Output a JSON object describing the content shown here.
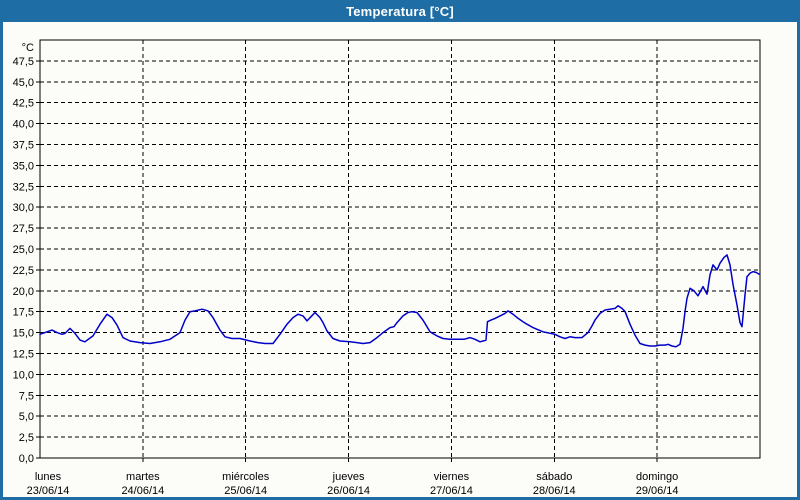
{
  "window": {
    "title": "Temperatura [°C]"
  },
  "colors": {
    "frame": "#1e6da5",
    "titlebar_bg": "#1e6da5",
    "title_text": "#ffffff",
    "content_bg": "#fcfcf9",
    "plot_border": "#000000",
    "grid": "#000000",
    "tick_text": "#000000",
    "line": "#0000c8"
  },
  "chart_data": {
    "type": "line",
    "title": "Temperatura [°C]",
    "ylabel": "°C",
    "ylim": [
      0,
      50
    ],
    "ytick_step": 2.5,
    "grid": "dashed",
    "legend_position": "none",
    "yticks": [
      {
        "value": 0.0,
        "label": "0,0"
      },
      {
        "value": 2.5,
        "label": "2,5"
      },
      {
        "value": 5.0,
        "label": "5,0"
      },
      {
        "value": 7.5,
        "label": "7,5"
      },
      {
        "value": 10.0,
        "label": "10,0"
      },
      {
        "value": 12.5,
        "label": "12,5"
      },
      {
        "value": 15.0,
        "label": "15,0"
      },
      {
        "value": 17.5,
        "label": "17,5"
      },
      {
        "value": 20.0,
        "label": "20,0"
      },
      {
        "value": 22.5,
        "label": "22,5"
      },
      {
        "value": 25.0,
        "label": "25,0"
      },
      {
        "value": 27.5,
        "label": "27,5"
      },
      {
        "value": 30.0,
        "label": "30,0"
      },
      {
        "value": 32.5,
        "label": "32,5"
      },
      {
        "value": 35.0,
        "label": "35,0"
      },
      {
        "value": 37.5,
        "label": "37,5"
      },
      {
        "value": 40.0,
        "label": "40,0"
      },
      {
        "value": 42.5,
        "label": "42,5"
      },
      {
        "value": 45.0,
        "label": "45,0"
      },
      {
        "value": 47.5,
        "label": "47,5"
      }
    ],
    "x_days": [
      {
        "name": "lunes",
        "date": "23/06/14"
      },
      {
        "name": "martes",
        "date": "24/06/14"
      },
      {
        "name": "miércoles",
        "date": "25/06/14"
      },
      {
        "name": "jueves",
        "date": "26/06/14"
      },
      {
        "name": "viernes",
        "date": "27/06/14"
      },
      {
        "name": "sábado",
        "date": "28/06/14"
      },
      {
        "name": "domingo",
        "date": "29/06/14"
      }
    ],
    "series": [
      {
        "name": "Temperatura",
        "color": "#0000c8",
        "points": [
          [
            0.0,
            14.8
          ],
          [
            0.049,
            15.0
          ],
          [
            0.117,
            15.3
          ],
          [
            0.165,
            15.0
          ],
          [
            0.214,
            14.8
          ],
          [
            0.243,
            14.9
          ],
          [
            0.292,
            15.5
          ],
          [
            0.34,
            14.9
          ],
          [
            0.389,
            14.1
          ],
          [
            0.437,
            13.9
          ],
          [
            0.515,
            14.6
          ],
          [
            0.583,
            16.0
          ],
          [
            0.651,
            17.2
          ],
          [
            0.7,
            16.8
          ],
          [
            0.749,
            15.9
          ],
          [
            0.807,
            14.4
          ],
          [
            0.875,
            14.0
          ],
          [
            0.972,
            13.8
          ],
          [
            1.069,
            13.7
          ],
          [
            1.167,
            13.9
          ],
          [
            1.264,
            14.2
          ],
          [
            1.361,
            15.0
          ],
          [
            1.41,
            16.5
          ],
          [
            1.458,
            17.5
          ],
          [
            1.507,
            17.6
          ],
          [
            1.575,
            17.8
          ],
          [
            1.633,
            17.6
          ],
          [
            1.682,
            16.8
          ],
          [
            1.75,
            15.3
          ],
          [
            1.799,
            14.5
          ],
          [
            1.867,
            14.3
          ],
          [
            1.944,
            14.3
          ],
          [
            2.042,
            14.0
          ],
          [
            2.119,
            13.8
          ],
          [
            2.188,
            13.7
          ],
          [
            2.265,
            13.7
          ],
          [
            2.333,
            14.8
          ],
          [
            2.401,
            16.0
          ],
          [
            2.46,
            16.8
          ],
          [
            2.508,
            17.2
          ],
          [
            2.557,
            17.0
          ],
          [
            2.596,
            16.4
          ],
          [
            2.635,
            16.9
          ],
          [
            2.674,
            17.4
          ],
          [
            2.722,
            16.8
          ],
          [
            2.751,
            16.2
          ],
          [
            2.79,
            15.2
          ],
          [
            2.849,
            14.3
          ],
          [
            2.917,
            14.0
          ],
          [
            3.014,
            13.9
          ],
          [
            3.082,
            13.8
          ],
          [
            3.14,
            13.7
          ],
          [
            3.208,
            13.8
          ],
          [
            3.276,
            14.4
          ],
          [
            3.335,
            15.0
          ],
          [
            3.403,
            15.6
          ],
          [
            3.442,
            15.7
          ],
          [
            3.471,
            16.2
          ],
          [
            3.529,
            17.0
          ],
          [
            3.578,
            17.4
          ],
          [
            3.617,
            17.5
          ],
          [
            3.665,
            17.4
          ],
          [
            3.724,
            16.5
          ],
          [
            3.792,
            15.1
          ],
          [
            3.86,
            14.6
          ],
          [
            3.918,
            14.3
          ],
          [
            3.986,
            14.2
          ],
          [
            4.064,
            14.2
          ],
          [
            4.122,
            14.2
          ],
          [
            4.181,
            14.4
          ],
          [
            4.229,
            14.2
          ],
          [
            4.278,
            13.9
          ],
          [
            4.307,
            14.0
          ],
          [
            4.336,
            14.1
          ],
          [
            4.351,
            16.3
          ],
          [
            4.385,
            16.5
          ],
          [
            4.424,
            16.7
          ],
          [
            4.472,
            17.0
          ],
          [
            4.521,
            17.3
          ],
          [
            4.55,
            17.6
          ],
          [
            4.599,
            17.2
          ],
          [
            4.638,
            16.8
          ],
          [
            4.696,
            16.3
          ],
          [
            4.735,
            16.0
          ],
          [
            4.793,
            15.6
          ],
          [
            4.832,
            15.4
          ],
          [
            4.89,
            15.1
          ],
          [
            4.929,
            15.0
          ],
          [
            5.007,
            14.8
          ],
          [
            5.056,
            14.5
          ],
          [
            5.104,
            14.3
          ],
          [
            5.153,
            14.5
          ],
          [
            5.201,
            14.4
          ],
          [
            5.269,
            14.4
          ],
          [
            5.328,
            15.0
          ],
          [
            5.367,
            15.8
          ],
          [
            5.396,
            16.5
          ],
          [
            5.444,
            17.3
          ],
          [
            5.493,
            17.7
          ],
          [
            5.542,
            17.8
          ],
          [
            5.59,
            17.9
          ],
          [
            5.619,
            18.2
          ],
          [
            5.658,
            17.9
          ],
          [
            5.688,
            17.5
          ],
          [
            5.736,
            16.0
          ],
          [
            5.785,
            14.7
          ],
          [
            5.833,
            13.7
          ],
          [
            5.882,
            13.5
          ],
          [
            5.931,
            13.4
          ],
          [
            5.979,
            13.4
          ],
          [
            6.028,
            13.5
          ],
          [
            6.076,
            13.5
          ],
          [
            6.106,
            13.6
          ],
          [
            6.144,
            13.4
          ],
          [
            6.183,
            13.3
          ],
          [
            6.222,
            13.6
          ],
          [
            6.251,
            15.5
          ],
          [
            6.271,
            17.5
          ],
          [
            6.29,
            19.1
          ],
          [
            6.319,
            20.3
          ],
          [
            6.358,
            20.0
          ],
          [
            6.397,
            19.4
          ],
          [
            6.446,
            20.5
          ],
          [
            6.485,
            19.6
          ],
          [
            6.514,
            21.9
          ],
          [
            6.543,
            23.1
          ],
          [
            6.582,
            22.5
          ],
          [
            6.611,
            23.3
          ],
          [
            6.65,
            24.0
          ],
          [
            6.679,
            24.3
          ],
          [
            6.708,
            23.1
          ],
          [
            6.738,
            20.7
          ],
          [
            6.776,
            18.3
          ],
          [
            6.806,
            16.2
          ],
          [
            6.825,
            15.7
          ],
          [
            6.854,
            19.5
          ],
          [
            6.874,
            21.7
          ],
          [
            6.903,
            22.1
          ],
          [
            6.932,
            22.3
          ],
          [
            6.961,
            22.2
          ],
          [
            6.99,
            22.0
          ]
        ]
      }
    ]
  }
}
